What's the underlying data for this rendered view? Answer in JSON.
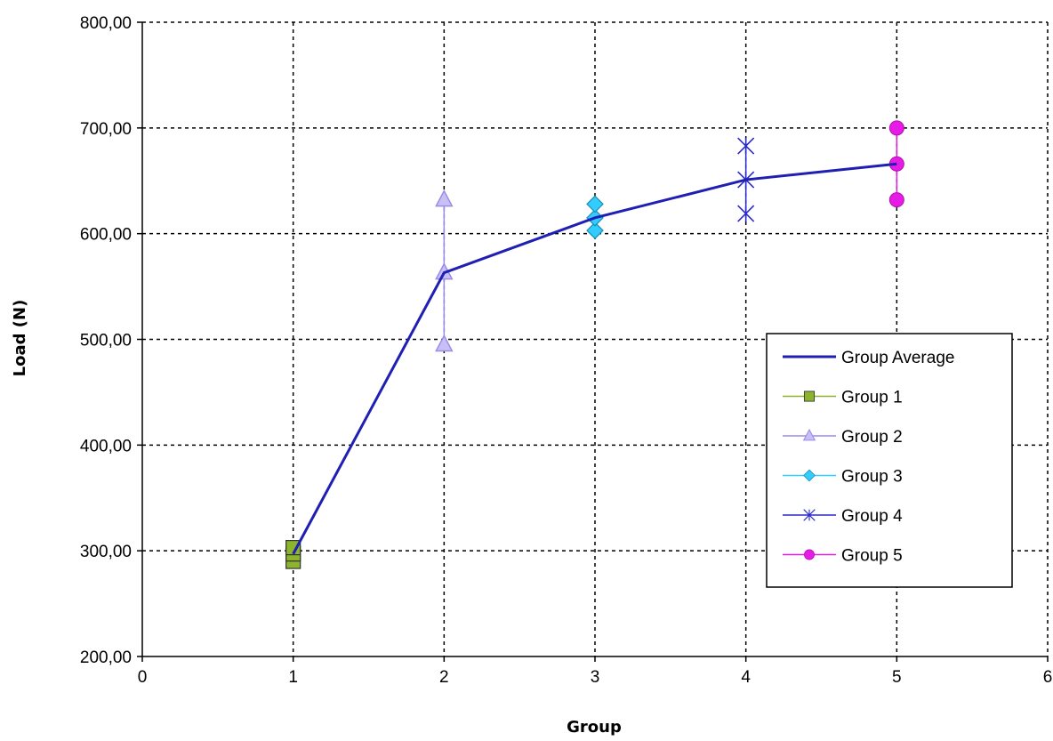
{
  "chart_data": {
    "type": "line",
    "title": "",
    "xlabel": "Group",
    "ylabel": "Load (N)",
    "xlim": [
      0,
      6
    ],
    "ylim": [
      200,
      800
    ],
    "x_ticks": [
      "0",
      "1",
      "2",
      "3",
      "4",
      "5",
      "6"
    ],
    "y_ticks": [
      "200,00",
      "300,00",
      "400,00",
      "500,00",
      "600,00",
      "700,00",
      "800,00"
    ],
    "grid": true,
    "legend_position": "right",
    "series": [
      {
        "name": "Group Average",
        "color": "#1f1fb4",
        "marker": "none",
        "x": [
          1,
          2,
          3,
          4,
          5
        ],
        "y": [
          297,
          563,
          615,
          651,
          666
        ]
      },
      {
        "name": "Group 1",
        "color": "#8cb42d",
        "marker": "square",
        "x": [
          1,
          1,
          1
        ],
        "y": [
          290,
          297,
          303
        ]
      },
      {
        "name": "Group 2",
        "color": "#9b8ce6",
        "marker": "triangle",
        "x": [
          2,
          2,
          2
        ],
        "y": [
          495,
          563,
          632
        ]
      },
      {
        "name": "Group 3",
        "color": "#33ccff",
        "marker": "diamond",
        "x": [
          3,
          3,
          3
        ],
        "y": [
          603,
          615,
          628
        ]
      },
      {
        "name": "Group 4",
        "color": "#2a2acc",
        "marker": "star",
        "x": [
          4,
          4,
          4
        ],
        "y": [
          619,
          651,
          683
        ]
      },
      {
        "name": "Group 5",
        "color": "#e61be6",
        "marker": "circle",
        "x": [
          5,
          5,
          5
        ],
        "y": [
          632,
          666,
          700
        ]
      }
    ]
  }
}
